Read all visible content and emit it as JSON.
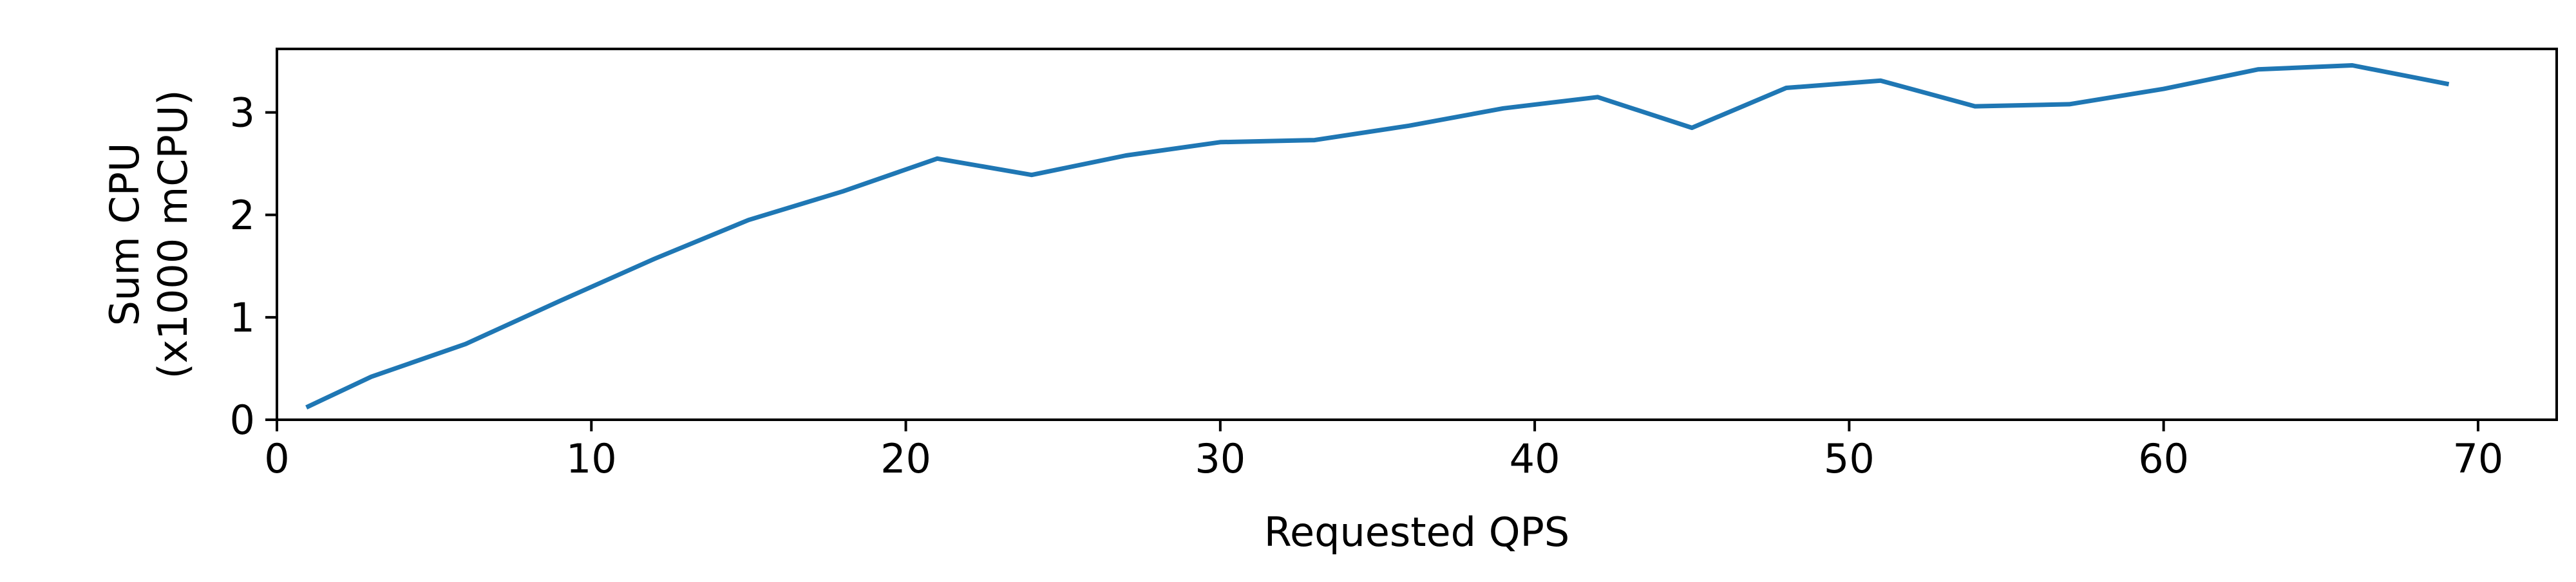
{
  "chart_data": {
    "type": "line",
    "title": "",
    "xlabel": "Requested QPS",
    "ylabel_lines": [
      "Sum CPU",
      "(x1000 mCPU)"
    ],
    "xlim": [
      0,
      72.5
    ],
    "ylim": [
      0,
      3.62
    ],
    "x_ticks": [
      0,
      10,
      20,
      30,
      40,
      50,
      60,
      70
    ],
    "y_ticks": [
      0,
      1,
      2,
      3
    ],
    "grid": false,
    "legend": "none",
    "series": [
      {
        "color": "#1f77b4",
        "x": [
          1,
          3,
          6,
          9,
          12,
          15,
          18,
          21,
          24,
          27,
          30,
          33,
          36,
          39,
          42,
          45,
          48,
          51,
          54,
          57,
          60,
          63,
          66,
          69
        ],
        "y": [
          0.13,
          0.42,
          0.74,
          1.16,
          1.57,
          1.95,
          2.23,
          2.55,
          2.39,
          2.58,
          2.71,
          2.73,
          2.87,
          3.04,
          3.15,
          2.85,
          3.24,
          3.31,
          3.06,
          3.08,
          3.23,
          3.42,
          3.46,
          3.28
        ]
      }
    ]
  }
}
